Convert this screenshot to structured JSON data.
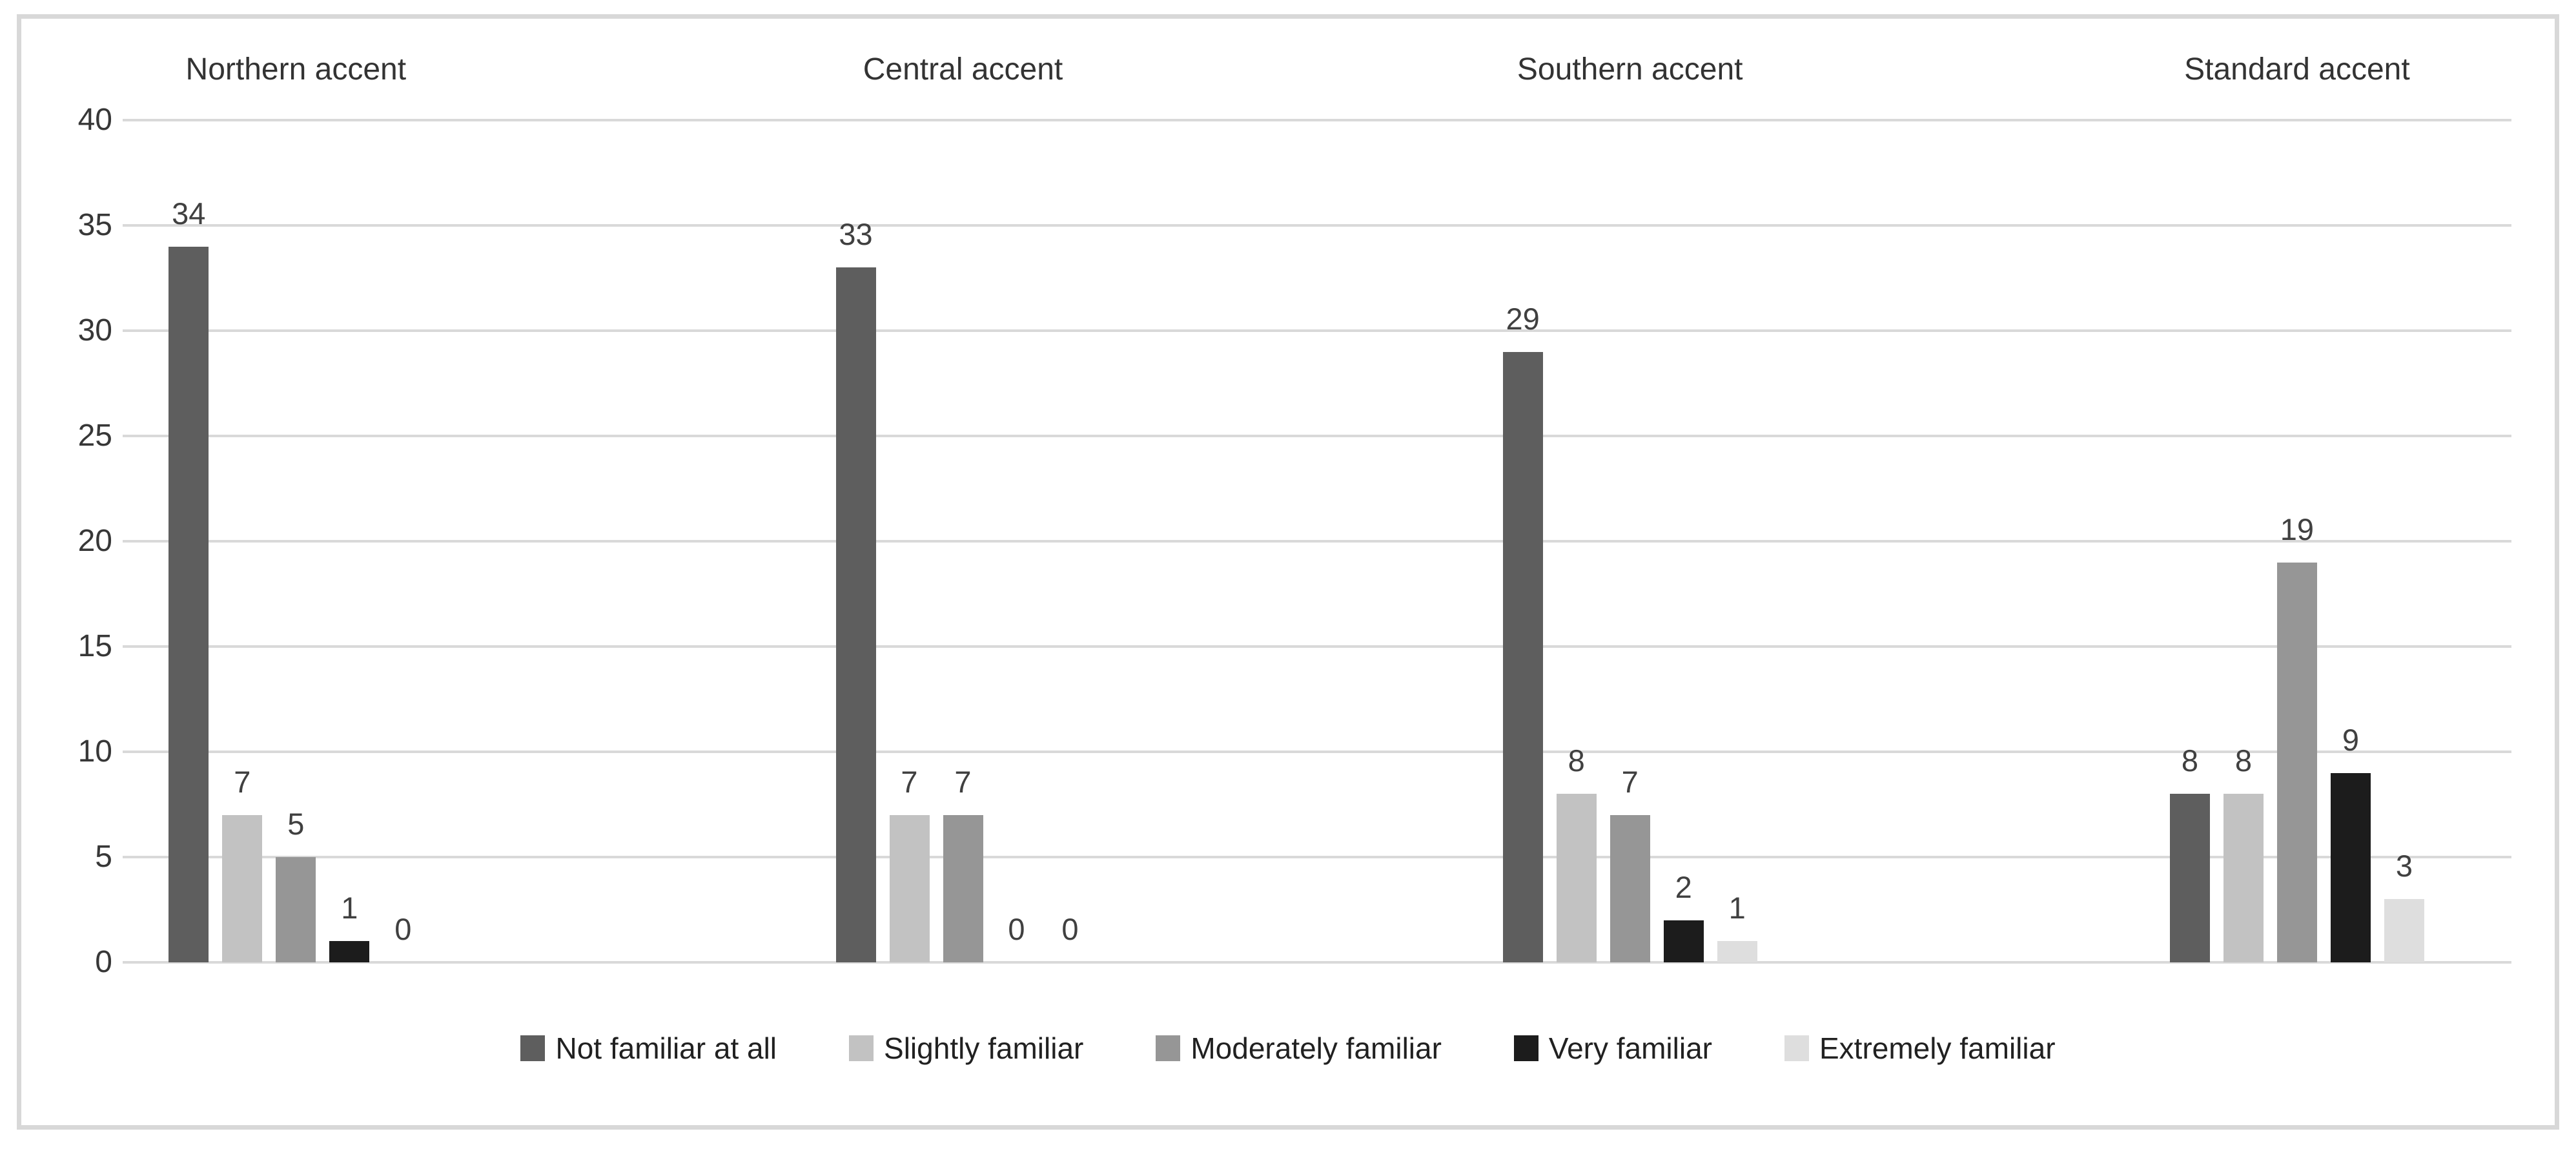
{
  "chart_data": {
    "type": "bar",
    "title": "",
    "categories": [
      "Northern accent",
      "Central accent",
      "Southern accent",
      "Standard accent"
    ],
    "series": [
      {
        "name": "Not familiar at all",
        "color": "#5e5e5e",
        "values": [
          34,
          33,
          29,
          8
        ]
      },
      {
        "name": "Slightly familiar",
        "color": "#c2c2c2",
        "values": [
          7,
          7,
          8,
          8
        ]
      },
      {
        "name": "Moderately familiar",
        "color": "#969696",
        "values": [
          5,
          7,
          7,
          19
        ]
      },
      {
        "name": "Very familiar",
        "color": "#1c1c1c",
        "values": [
          1,
          0,
          2,
          9
        ]
      },
      {
        "name": "Extremely familiar",
        "color": "#dedede",
        "values": [
          0,
          0,
          1,
          3
        ]
      }
    ],
    "xlabel": "",
    "ylabel": "",
    "ylim": [
      0,
      40
    ],
    "yticks": [
      0,
      5,
      10,
      15,
      20,
      25,
      30,
      35,
      40
    ],
    "grid": true,
    "gridline_color": "#d9d9d9",
    "frame_color": "#d8d8d8",
    "tick_label_color": "#373737",
    "data_label_color": "#404040",
    "category_label_color": "#333333",
    "legend_text_color": "#212121",
    "data_labels": true,
    "legend_position": "bottom",
    "category_labels_position": "top",
    "group_center_percents": [
      7,
      35,
      63,
      91
    ]
  }
}
